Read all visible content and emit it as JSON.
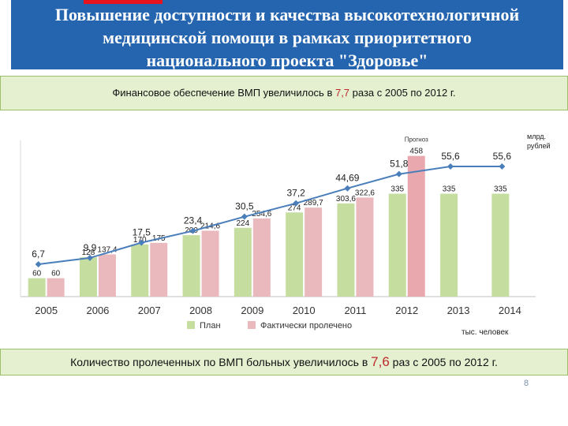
{
  "title": "Повышение доступности и качества высокотехнологичной\nмедицинской  помощи в рамках приоритетного\nнационального проекта \"Здоровье\"",
  "banner_top": {
    "prefix": "Финансовое обеспечение ВМП увеличилось в ",
    "highlight": "7,7",
    "suffix": " раза с 2005 по 2012 г."
  },
  "banner_bottom": {
    "prefix": "Количество пролеченных по ВМП больных увеличилось в ",
    "highlight": "7,6",
    "suffix": " раз с 2005 по 2012 г."
  },
  "page_number": "8",
  "colors": {
    "title_bg": "#2565b0",
    "title_accent": "#e8141d",
    "banner_bg": "#e4f0d0",
    "plan": "#c5dea0",
    "actual": "#e9b9bd",
    "forecast": "#e8a8ae",
    "line": "#4a7ebb",
    "highlight": "#c0282e"
  },
  "chart_data": {
    "type": "bar",
    "categories": [
      "2005",
      "2006",
      "2007",
      "2008",
      "2009",
      "2010",
      "2011",
      "2012",
      "2013",
      "2014"
    ],
    "series": [
      {
        "name": "План",
        "values": [
          60,
          128,
          170,
          200,
          224,
          274,
          303.6,
          335,
          335,
          335
        ],
        "labels": [
          "60",
          "128",
          "170",
          "200",
          "224",
          "274",
          "303,6",
          "335",
          "335",
          "335"
        ]
      },
      {
        "name": "Фактически пролечено",
        "values": [
          60,
          137.4,
          175,
          214.6,
          254.6,
          289.7,
          322.6,
          458,
          null,
          null
        ],
        "labels": [
          "60",
          "137,4",
          "175",
          "214,6",
          "254,6",
          "289,7",
          "322,6",
          "458",
          "",
          ""
        ]
      }
    ],
    "line_series": {
      "values": [
        6.7,
        9.9,
        17.5,
        23.4,
        30.5,
        37.2,
        44.69,
        51.8,
        55.6,
        55.6
      ],
      "labels": [
        "6,7",
        "9,9",
        "17,5",
        "23,4",
        "30,5",
        "37,2",
        "44,69",
        "51,8",
        "55,6",
        "55,6"
      ]
    },
    "forecast_label": "Прогноз",
    "forecast_category": "2012",
    "line_unit": "млрд.\nрублей",
    "bar_unit": "тыс. человек",
    "bar_ylim": [
      0,
      600
    ],
    "legend_position": "bottom"
  }
}
